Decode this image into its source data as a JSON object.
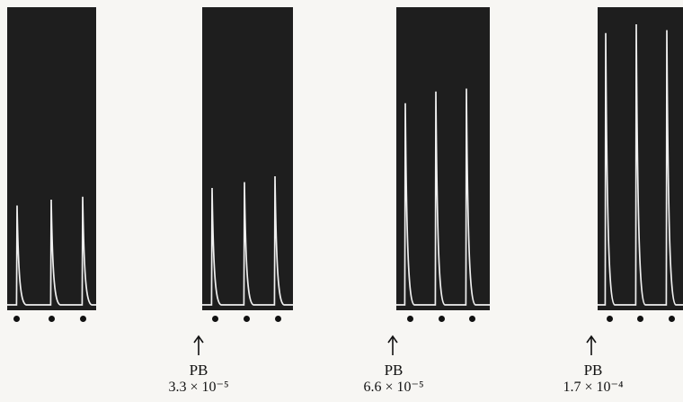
{
  "figure": {
    "trace_color": "#efefef",
    "panel_color": "#1e1e1e",
    "panels": [
      {
        "name": "control",
        "twitch_levels": [
          0.34,
          0.36,
          0.37
        ],
        "label": null
      },
      {
        "name": "pb-3.3e-5",
        "twitch_levels": [
          0.4,
          0.42,
          0.44
        ],
        "label": {
          "drug": "PB",
          "concentration": "3.3 × 10⁻⁵"
        }
      },
      {
        "name": "pb-6.6e-5",
        "twitch_levels": [
          0.69,
          0.73,
          0.74
        ],
        "label": {
          "drug": "PB",
          "concentration": "6.6 × 10⁻⁵"
        }
      },
      {
        "name": "pb-1.7e-4",
        "twitch_levels": [
          0.93,
          0.96,
          0.94
        ],
        "label": {
          "drug": "PB",
          "concentration": "1.7 × 10⁻⁴"
        }
      }
    ]
  }
}
